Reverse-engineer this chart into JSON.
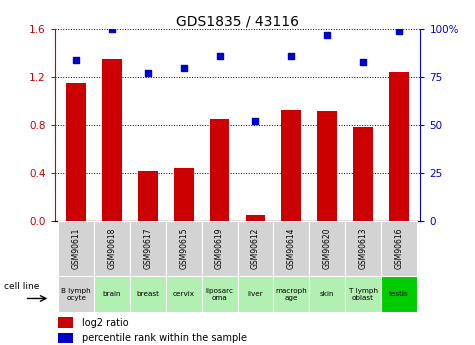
{
  "title": "GDS1835 / 43116",
  "samples": [
    "GSM90611",
    "GSM90618",
    "GSM90617",
    "GSM90615",
    "GSM90619",
    "GSM90612",
    "GSM90614",
    "GSM90620",
    "GSM90613",
    "GSM90616"
  ],
  "cell_lines": [
    "B lymph\nocyte",
    "brain",
    "breast",
    "cervix",
    "liposarc\noma",
    "liver",
    "macroph\nage",
    "skin",
    "T lymph\noblast",
    "testis"
  ],
  "cell_bg_colors": [
    "#d3d3d3",
    "#b2f0b2",
    "#b2f0b2",
    "#b2f0b2",
    "#b2f0b2",
    "#b2f0b2",
    "#b2f0b2",
    "#b2f0b2",
    "#b2f0b2",
    "#00cc00"
  ],
  "gsm_bg_color": "#d3d3d3",
  "log2_ratio": [
    1.15,
    1.35,
    0.42,
    0.44,
    0.85,
    0.05,
    0.93,
    0.92,
    0.78,
    1.24
  ],
  "percentile_rank": [
    84,
    100,
    77,
    80,
    86,
    52,
    86,
    97,
    83,
    99
  ],
  "bar_color": "#cc0000",
  "dot_color": "#0000cc",
  "left_ylim": [
    0,
    1.6
  ],
  "right_ylim": [
    0,
    100
  ],
  "left_yticks": [
    0,
    0.4,
    0.8,
    1.2,
    1.6
  ],
  "right_yticks": [
    0,
    25,
    50,
    75,
    100
  ],
  "right_yticklabels": [
    "0",
    "25",
    "50",
    "75",
    "100%"
  ],
  "legend_red": "log2 ratio",
  "legend_blue": "percentile rank within the sample",
  "cell_line_label": "cell line",
  "bar_width": 0.55
}
